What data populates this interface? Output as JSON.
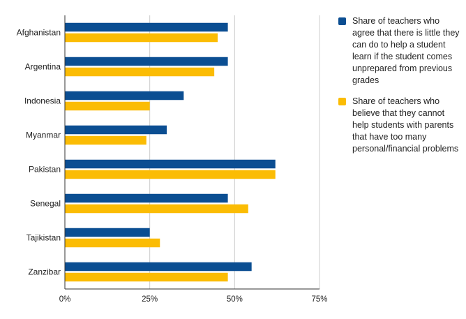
{
  "chart_data": {
    "type": "bar",
    "orientation": "horizontal",
    "categories": [
      "Afghanistan",
      "Argentina",
      "Indonesia",
      "Myanmar",
      "Pakistan",
      "Senegal",
      "Tajikistan",
      "Zanzibar"
    ],
    "series": [
      {
        "name": "Share of teachers who agree that there is little they can do to help a student learn if the student comes unprepared from previous grades",
        "color": "#0b4e92",
        "values": [
          48,
          48,
          35,
          30,
          62,
          48,
          25,
          55
        ]
      },
      {
        "name": "Share of teachers who believe that they cannot help students with parents that have too many personal/financial problems",
        "color": "#fbbc04",
        "values": [
          45,
          44,
          25,
          24,
          62,
          54,
          28,
          48
        ]
      }
    ],
    "xlim": [
      0,
      75
    ],
    "xticks": [
      "0%",
      "25%",
      "50%",
      "75%"
    ],
    "xtick_values": [
      0,
      25,
      50,
      75
    ],
    "grid": "vertical",
    "legend_position": "right"
  }
}
